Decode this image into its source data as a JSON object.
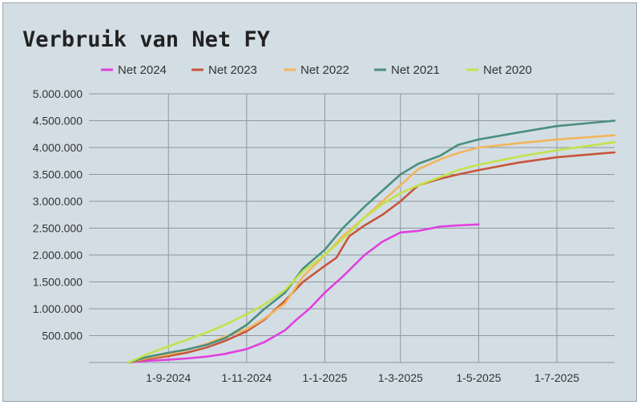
{
  "chart_data": {
    "type": "line",
    "title": "Verbruik van Net FY",
    "legend_position": "top",
    "grid": true,
    "xlim": [
      "2024-07-01",
      "2025-08-15"
    ],
    "ylim": [
      0,
      5000000
    ],
    "y_ticks": [
      {
        "value": 500000,
        "label": "500.000"
      },
      {
        "value": 1000000,
        "label": "1.000.000"
      },
      {
        "value": 1500000,
        "label": "1.500.000"
      },
      {
        "value": 2000000,
        "label": "2.000.000"
      },
      {
        "value": 2500000,
        "label": "2.500.000"
      },
      {
        "value": 3000000,
        "label": "3.000.000"
      },
      {
        "value": 3500000,
        "label": "3.500.000"
      },
      {
        "value": 4000000,
        "label": "4.000.000"
      },
      {
        "value": 4500000,
        "label": "4.500.000"
      },
      {
        "value": 5000000,
        "label": "5.000.000"
      }
    ],
    "x_ticks": [
      {
        "date": "2024-09-01",
        "label": "1-9-2024"
      },
      {
        "date": "2024-11-01",
        "label": "1-11-2024"
      },
      {
        "date": "2025-01-01",
        "label": "1-1-2025"
      },
      {
        "date": "2025-03-01",
        "label": "1-3-2025"
      },
      {
        "date": "2025-05-01",
        "label": "1-5-2025"
      },
      {
        "date": "2025-07-01",
        "label": "1-7-2025"
      }
    ],
    "series": [
      {
        "name": "Net 2024",
        "color": "#e040e0",
        "points": [
          [
            "2024-08-01",
            0
          ],
          [
            "2024-08-15",
            30000
          ],
          [
            "2024-09-01",
            50000
          ],
          [
            "2024-09-15",
            75000
          ],
          [
            "2024-10-01",
            110000
          ],
          [
            "2024-10-15",
            160000
          ],
          [
            "2024-11-01",
            250000
          ],
          [
            "2024-11-15",
            380000
          ],
          [
            "2024-12-01",
            600000
          ],
          [
            "2024-12-10",
            800000
          ],
          [
            "2024-12-20",
            1000000
          ],
          [
            "2025-01-01",
            1300000
          ],
          [
            "2025-01-15",
            1600000
          ],
          [
            "2025-02-01",
            2000000
          ],
          [
            "2025-02-15",
            2250000
          ],
          [
            "2025-03-01",
            2420000
          ],
          [
            "2025-03-15",
            2450000
          ],
          [
            "2025-04-01",
            2530000
          ],
          [
            "2025-04-15",
            2550000
          ],
          [
            "2025-05-01",
            2570000
          ]
        ]
      },
      {
        "name": "Net 2023",
        "color": "#c8553d",
        "points": [
          [
            "2024-08-01",
            0
          ],
          [
            "2024-08-15",
            60000
          ],
          [
            "2024-09-01",
            120000
          ],
          [
            "2024-09-15",
            180000
          ],
          [
            "2024-10-01",
            280000
          ],
          [
            "2024-10-15",
            400000
          ],
          [
            "2024-11-01",
            580000
          ],
          [
            "2024-11-15",
            800000
          ],
          [
            "2024-12-01",
            1150000
          ],
          [
            "2024-12-15",
            1500000
          ],
          [
            "2025-01-01",
            1800000
          ],
          [
            "2025-01-10",
            1950000
          ],
          [
            "2025-01-20",
            2350000
          ],
          [
            "2025-02-01",
            2550000
          ],
          [
            "2025-02-15",
            2750000
          ],
          [
            "2025-03-01",
            3000000
          ],
          [
            "2025-03-15",
            3300000
          ],
          [
            "2025-04-01",
            3420000
          ],
          [
            "2025-04-15",
            3500000
          ],
          [
            "2025-05-01",
            3580000
          ],
          [
            "2025-06-01",
            3720000
          ],
          [
            "2025-07-01",
            3820000
          ],
          [
            "2025-08-15",
            3910000
          ]
        ]
      },
      {
        "name": "Net 2022",
        "color": "#f4b55c",
        "points": [
          [
            "2024-08-01",
            0
          ],
          [
            "2024-08-15",
            80000
          ],
          [
            "2024-09-01",
            150000
          ],
          [
            "2024-09-15",
            230000
          ],
          [
            "2024-10-01",
            350000
          ],
          [
            "2024-10-15",
            480000
          ],
          [
            "2024-11-01",
            620000
          ],
          [
            "2024-11-15",
            820000
          ],
          [
            "2024-12-01",
            1100000
          ],
          [
            "2024-12-15",
            1600000
          ],
          [
            "2025-01-01",
            2000000
          ],
          [
            "2025-01-15",
            2350000
          ],
          [
            "2025-02-01",
            2700000
          ],
          [
            "2025-02-15",
            3000000
          ],
          [
            "2025-03-01",
            3300000
          ],
          [
            "2025-03-15",
            3600000
          ],
          [
            "2025-04-01",
            3780000
          ],
          [
            "2025-04-15",
            3900000
          ],
          [
            "2025-05-01",
            4000000
          ],
          [
            "2025-06-01",
            4080000
          ],
          [
            "2025-07-01",
            4150000
          ],
          [
            "2025-08-15",
            4230000
          ]
        ]
      },
      {
        "name": "Net 2021",
        "color": "#4a8f7e",
        "points": [
          [
            "2024-08-01",
            0
          ],
          [
            "2024-08-15",
            100000
          ],
          [
            "2024-09-01",
            180000
          ],
          [
            "2024-09-15",
            240000
          ],
          [
            "2024-10-01",
            330000
          ],
          [
            "2024-10-15",
            450000
          ],
          [
            "2024-11-01",
            700000
          ],
          [
            "2024-11-15",
            1000000
          ],
          [
            "2024-12-01",
            1300000
          ],
          [
            "2024-12-15",
            1750000
          ],
          [
            "2025-01-01",
            2100000
          ],
          [
            "2025-01-15",
            2500000
          ],
          [
            "2025-02-01",
            2900000
          ],
          [
            "2025-02-15",
            3200000
          ],
          [
            "2025-03-01",
            3500000
          ],
          [
            "2025-03-15",
            3700000
          ],
          [
            "2025-04-01",
            3850000
          ],
          [
            "2025-04-15",
            4050000
          ],
          [
            "2025-05-01",
            4150000
          ],
          [
            "2025-06-01",
            4280000
          ],
          [
            "2025-07-01",
            4400000
          ],
          [
            "2025-08-15",
            4500000
          ]
        ]
      },
      {
        "name": "Net 2020",
        "color": "#c4e24a",
        "points": [
          [
            "2024-08-01",
            0
          ],
          [
            "2024-08-15",
            150000
          ],
          [
            "2024-09-01",
            300000
          ],
          [
            "2024-09-15",
            420000
          ],
          [
            "2024-10-01",
            560000
          ],
          [
            "2024-10-15",
            700000
          ],
          [
            "2024-11-01",
            900000
          ],
          [
            "2024-11-15",
            1080000
          ],
          [
            "2024-12-01",
            1350000
          ],
          [
            "2024-12-15",
            1700000
          ],
          [
            "2025-01-01",
            2000000
          ],
          [
            "2025-01-15",
            2300000
          ],
          [
            "2025-02-01",
            2700000
          ],
          [
            "2025-02-15",
            2950000
          ],
          [
            "2025-03-01",
            3150000
          ],
          [
            "2025-03-15",
            3300000
          ],
          [
            "2025-04-01",
            3450000
          ],
          [
            "2025-04-15",
            3580000
          ],
          [
            "2025-05-01",
            3680000
          ],
          [
            "2025-06-01",
            3830000
          ],
          [
            "2025-07-01",
            3950000
          ],
          [
            "2025-08-15",
            4100000
          ]
        ]
      }
    ]
  }
}
